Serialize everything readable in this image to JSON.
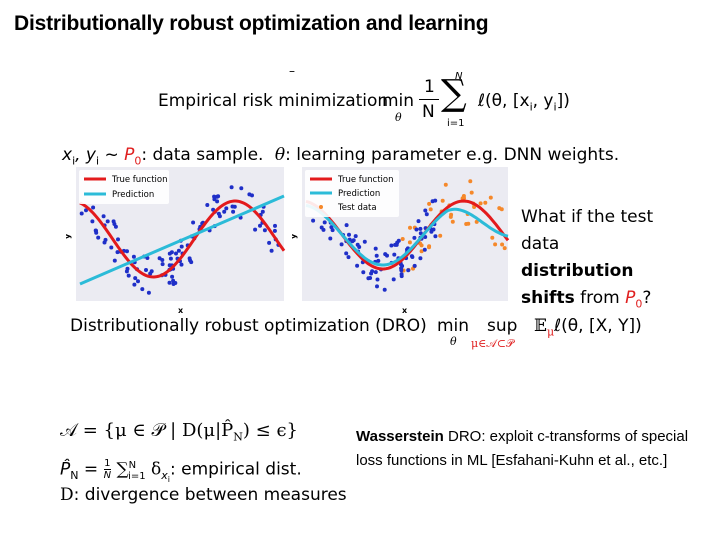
{
  "slide": {
    "title": "Distributionally robust optimization and learning",
    "erm_label": "Empirical risk minimization",
    "erm_min": "min",
    "erm_min_sub": "θ",
    "erm_frac_num": "1",
    "erm_frac_den": "N",
    "erm_sum_top": "N",
    "erm_sum_bottom": "i=1",
    "erm_expr": "ℓ(θ, [x",
    "erm_expr_i": "i",
    "erm_expr_mid": ", y",
    "erm_expr_end": "])",
    "sample_vars": "x",
    "sample_vars_i": "i",
    "sample_vars_y": ", y",
    "sample_vars_i2": "i",
    "sample_sim": " ~ ",
    "sample_p0": "P",
    "sample_p0_sub": "0",
    "sample_text": ": data sample.",
    "theta_sym": "θ",
    "theta_text": ": learning parameter e.g. DNN weights.",
    "question_line1": "What if the test",
    "question_line2_pre": "data ",
    "question_line2_bold": "distribution",
    "question_line3_bold": "shifts",
    "question_line3_mid": " from ",
    "question_p": "P",
    "question_p_sub": "0",
    "question_end": "?",
    "dro_label": "Distributionally robust optimization (DRO)",
    "dro_min": "min",
    "dro_min_sub": "θ",
    "dro_sup": "sup",
    "dro_sup_sub": "μ∈𝒜⊂𝒫",
    "dro_expr_E": "𝔼",
    "dro_expr_mu": "μ",
    "dro_expr": "ℓ(θ, [X, Y])",
    "ambiguity_set": "𝒜 = {μ ∈ 𝒫 | D(μ|P̂",
    "ambiguity_set_sub": "N",
    "ambiguity_set_end": ") ≤ ϵ}",
    "empirical_lhs": "P̂",
    "empirical_lhs_sub": "N",
    "empirical_mid": " = ",
    "empirical_frac_num": "1",
    "empirical_frac_den": "N",
    "empirical_sum": "∑",
    "empirical_sum_top": "N",
    "empirical_sum_bottom": "i=1",
    "empirical_delta": "δ",
    "empirical_delta_sub": "x",
    "empirical_delta_sub_i": "i",
    "empirical_text": ": empirical dist.",
    "divergence_sym": "D",
    "divergence_text": ": divergence between measures",
    "wass_bold": "Wasserstein",
    "wass_line1_rest": " DRO: exploit c-transforms of special",
    "wass_line2": "loss functions in ML [Esfahani-Kuhn et al., etc.]",
    "erm_dash": "–"
  },
  "plot_left": {
    "legend": [
      "True function",
      "Prediction"
    ],
    "xlabel": "x",
    "ylabel": "y"
  },
  "plot_right": {
    "legend": [
      "True function",
      "Prediction",
      "Test data"
    ],
    "xlabel": "x",
    "ylabel": "y"
  },
  "colors": {
    "true_function": "#e31a1c",
    "prediction": "#2bbbd8",
    "train_points": "#1f2fc8",
    "test_points": "#f5882a",
    "plot_bg": "#ebebf2",
    "legend_bg": "#ffffff",
    "accent_red": "#e02020"
  }
}
